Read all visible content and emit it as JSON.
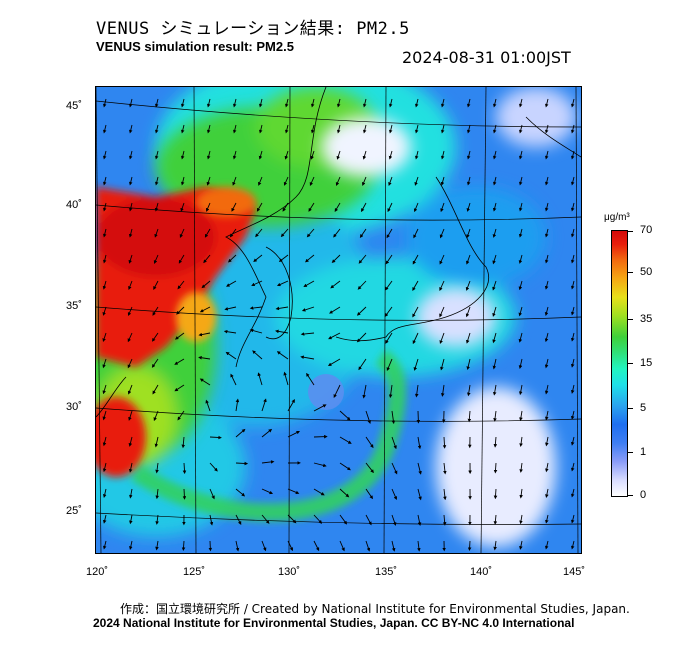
{
  "header": {
    "title_ja": "VENUS シミュレーション結果: PM2.5",
    "title_en": "VENUS simulation result: PM2.5",
    "timestamp": "2024-08-31 01:00JST"
  },
  "map": {
    "lat_labels": [
      "45˚",
      "40˚",
      "35˚",
      "30˚",
      "25˚"
    ],
    "lon_labels": [
      "120˚",
      "125˚",
      "130˚",
      "135˚",
      "140˚",
      "145˚"
    ],
    "colors": {
      "ocean_base": "#2f8af2",
      "high_pollution": "#e81e0c",
      "moderate": "#3fd03a",
      "low": "#22e6d8",
      "clean": "#ffffff"
    }
  },
  "legend": {
    "unit": "μg/m³",
    "ticks": [
      "70",
      "50",
      "35",
      "15",
      "5",
      "1",
      "0"
    ]
  },
  "footer": {
    "credit_ja": "作成：国立環境研究所 / Created by National Institute for Environmental Studies, Japan.",
    "credit_en": "2024 National Institute for Environmental Studies, Japan. CC BY-NC 4.0 International"
  }
}
